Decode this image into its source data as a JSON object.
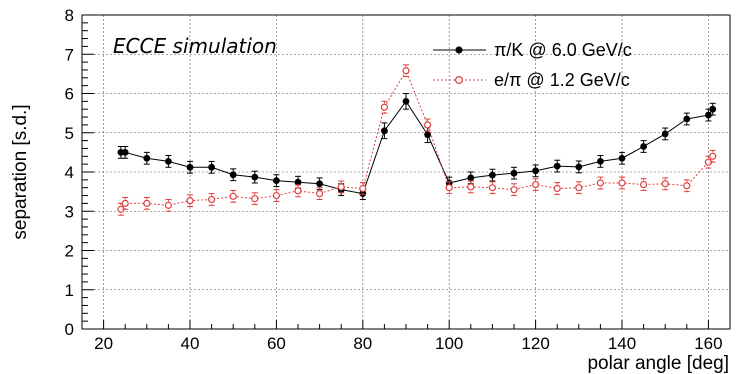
{
  "chart_data": {
    "type": "scatter",
    "annotation": "ECCE simulation",
    "xlabel": "polar angle [deg]",
    "ylabel": "separation [s.d.]",
    "xlim": [
      15,
      165
    ],
    "ylim": [
      0,
      8
    ],
    "x_ticks": [
      "20",
      "40",
      "60",
      "80",
      "100",
      "120",
      "140",
      "160"
    ],
    "y_ticks": [
      "0",
      "1",
      "2",
      "3",
      "4",
      "5",
      "6",
      "7",
      "8"
    ],
    "grid": true,
    "legend_position": "top-right",
    "series": [
      {
        "name": "π/K @ 6.0 GeV/c",
        "color": "#000000",
        "marker": "filled-circle",
        "line": "solid",
        "x": [
          24,
          25,
          30,
          35,
          40,
          45,
          50,
          55,
          60,
          65,
          70,
          75,
          80,
          85,
          90,
          95,
          100,
          105,
          110,
          115,
          120,
          125,
          130,
          135,
          140,
          145,
          150,
          155,
          160,
          161
        ],
        "y": [
          4.5,
          4.5,
          4.35,
          4.27,
          4.12,
          4.12,
          3.93,
          3.87,
          3.78,
          3.74,
          3.7,
          3.55,
          3.45,
          5.05,
          5.8,
          4.95,
          3.72,
          3.85,
          3.92,
          3.97,
          4.03,
          4.15,
          4.13,
          4.27,
          4.35,
          4.65,
          4.97,
          5.35,
          5.45,
          5.6
        ],
        "err": [
          0.15,
          0.15,
          0.15,
          0.15,
          0.15,
          0.15,
          0.15,
          0.15,
          0.15,
          0.15,
          0.15,
          0.15,
          0.15,
          0.2,
          0.2,
          0.2,
          0.15,
          0.15,
          0.15,
          0.15,
          0.15,
          0.15,
          0.15,
          0.15,
          0.15,
          0.15,
          0.15,
          0.15,
          0.15,
          0.15
        ]
      },
      {
        "name": "e/π @ 1.2 GeV/c",
        "color": "#e0403f",
        "marker": "open-circle",
        "line": "dotted",
        "x": [
          24,
          25,
          30,
          35,
          40,
          45,
          50,
          55,
          60,
          65,
          70,
          75,
          80,
          85,
          90,
          95,
          100,
          105,
          110,
          115,
          120,
          125,
          130,
          135,
          140,
          145,
          150,
          155,
          160,
          161
        ],
        "y": [
          3.05,
          3.2,
          3.2,
          3.15,
          3.27,
          3.3,
          3.38,
          3.32,
          3.4,
          3.52,
          3.45,
          3.62,
          3.58,
          5.65,
          6.58,
          5.2,
          3.6,
          3.62,
          3.6,
          3.55,
          3.68,
          3.58,
          3.6,
          3.72,
          3.72,
          3.68,
          3.7,
          3.65,
          4.25,
          4.4
        ],
        "err": [
          0.15,
          0.15,
          0.15,
          0.15,
          0.15,
          0.15,
          0.15,
          0.15,
          0.15,
          0.15,
          0.15,
          0.15,
          0.15,
          0.15,
          0.15,
          0.15,
          0.15,
          0.15,
          0.15,
          0.15,
          0.15,
          0.15,
          0.15,
          0.15,
          0.15,
          0.15,
          0.15,
          0.15,
          0.15,
          0.15
        ]
      }
    ]
  }
}
